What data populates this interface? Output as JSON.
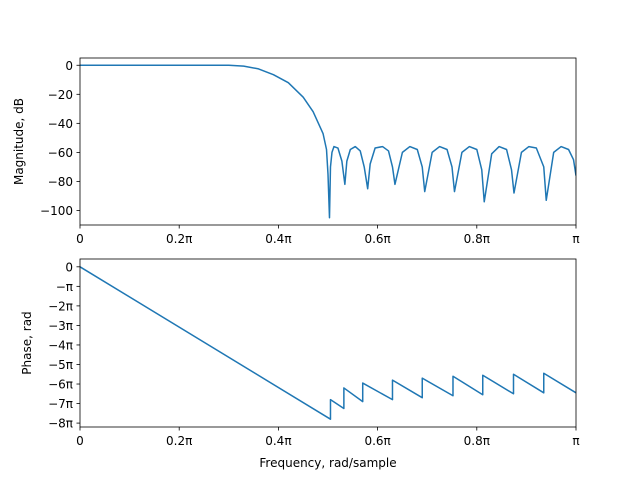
{
  "chart_data": [
    {
      "type": "line",
      "title": "",
      "xlabel": "",
      "ylabel": "Magnitude, dB",
      "xlim": [
        0,
        1
      ],
      "ylim": [
        -110,
        5
      ],
      "x_unit": "π rad/sample",
      "x_ticks": [
        {
          "value": 0,
          "label": "0"
        },
        {
          "value": 0.2,
          "label": "0.2π"
        },
        {
          "value": 0.4,
          "label": "0.4π"
        },
        {
          "value": 0.6,
          "label": "0.6π"
        },
        {
          "value": 0.8,
          "label": "0.8π"
        },
        {
          "value": 1.0,
          "label": "π"
        }
      ],
      "y_ticks": [
        {
          "value": 0,
          "label": "0"
        },
        {
          "value": -20,
          "label": "−20"
        },
        {
          "value": -40,
          "label": "−40"
        },
        {
          "value": -60,
          "label": "−60"
        },
        {
          "value": -80,
          "label": "−80"
        },
        {
          "value": -100,
          "label": "−100"
        }
      ],
      "grid": false,
      "series": [
        {
          "color": "#1f77b4",
          "x": [
            0,
            0.1,
            0.2,
            0.3,
            0.33,
            0.36,
            0.39,
            0.42,
            0.45,
            0.47,
            0.49,
            0.497,
            0.5,
            0.503,
            0.505,
            0.508,
            0.512,
            0.52,
            0.528,
            0.534,
            0.538,
            0.545,
            0.555,
            0.565,
            0.573,
            0.58,
            0.585,
            0.595,
            0.61,
            0.622,
            0.63,
            0.635,
            0.65,
            0.665,
            0.68,
            0.69,
            0.695,
            0.71,
            0.725,
            0.74,
            0.75,
            0.755,
            0.77,
            0.785,
            0.8,
            0.81,
            0.815,
            0.83,
            0.845,
            0.86,
            0.87,
            0.875,
            0.89,
            0.905,
            0.92,
            0.935,
            0.94,
            0.955,
            0.97,
            0.985,
            0.995,
            1.0
          ],
          "y": [
            0,
            0,
            0,
            0,
            -0.6,
            -2.5,
            -6.5,
            -12,
            -22,
            -32,
            -47,
            -58,
            -75,
            -105,
            -70,
            -60,
            -56,
            -57,
            -66,
            -82,
            -66,
            -58,
            -56,
            -59,
            -70,
            -85,
            -68,
            -57,
            -56,
            -59,
            -70,
            -82,
            -60,
            -56,
            -58,
            -70,
            -87,
            -60,
            -56,
            -58,
            -70,
            -87,
            -60,
            -56,
            -58,
            -72,
            -94,
            -61,
            -56,
            -58,
            -72,
            -88,
            -60,
            -56,
            -57,
            -70,
            -93,
            -60,
            -56,
            -58,
            -65,
            -76
          ]
        }
      ]
    },
    {
      "type": "line",
      "title": "",
      "xlabel": "Frequency, rad/sample",
      "ylabel": "Phase, rad",
      "xlim": [
        0,
        1
      ],
      "ylim": [
        -8.2,
        0.4
      ],
      "y_unit": "π rad",
      "x_ticks": [
        {
          "value": 0,
          "label": "0"
        },
        {
          "value": 0.2,
          "label": "0.2π"
        },
        {
          "value": 0.4,
          "label": "0.4π"
        },
        {
          "value": 0.6,
          "label": "0.6π"
        },
        {
          "value": 0.8,
          "label": "0.8π"
        },
        {
          "value": 1.0,
          "label": "π"
        }
      ],
      "y_ticks": [
        {
          "value": 0,
          "label": "0"
        },
        {
          "value": -1,
          "label": "−π"
        },
        {
          "value": -2,
          "label": "−2π"
        },
        {
          "value": -3,
          "label": "−3π"
        },
        {
          "value": -4,
          "label": "−4π"
        },
        {
          "value": -5,
          "label": "−5π"
        },
        {
          "value": -6,
          "label": "−6π"
        },
        {
          "value": -7,
          "label": "−7π"
        },
        {
          "value": -8,
          "label": "−8π"
        }
      ],
      "grid": false,
      "series": [
        {
          "color": "#1f77b4",
          "x": [
            0,
            0.505,
            0.505,
            0.532,
            0.532,
            0.57,
            0.57,
            0.63,
            0.63,
            0.69,
            0.69,
            0.752,
            0.752,
            0.812,
            0.812,
            0.874,
            0.874,
            0.935,
            0.935,
            1.0
          ],
          "y": [
            0,
            -7.8,
            -6.8,
            -7.25,
            -6.2,
            -6.9,
            -5.95,
            -6.8,
            -5.8,
            -6.7,
            -5.7,
            -6.6,
            -5.6,
            -6.55,
            -5.55,
            -6.5,
            -5.5,
            -6.45,
            -5.45,
            -6.45
          ]
        }
      ]
    }
  ]
}
